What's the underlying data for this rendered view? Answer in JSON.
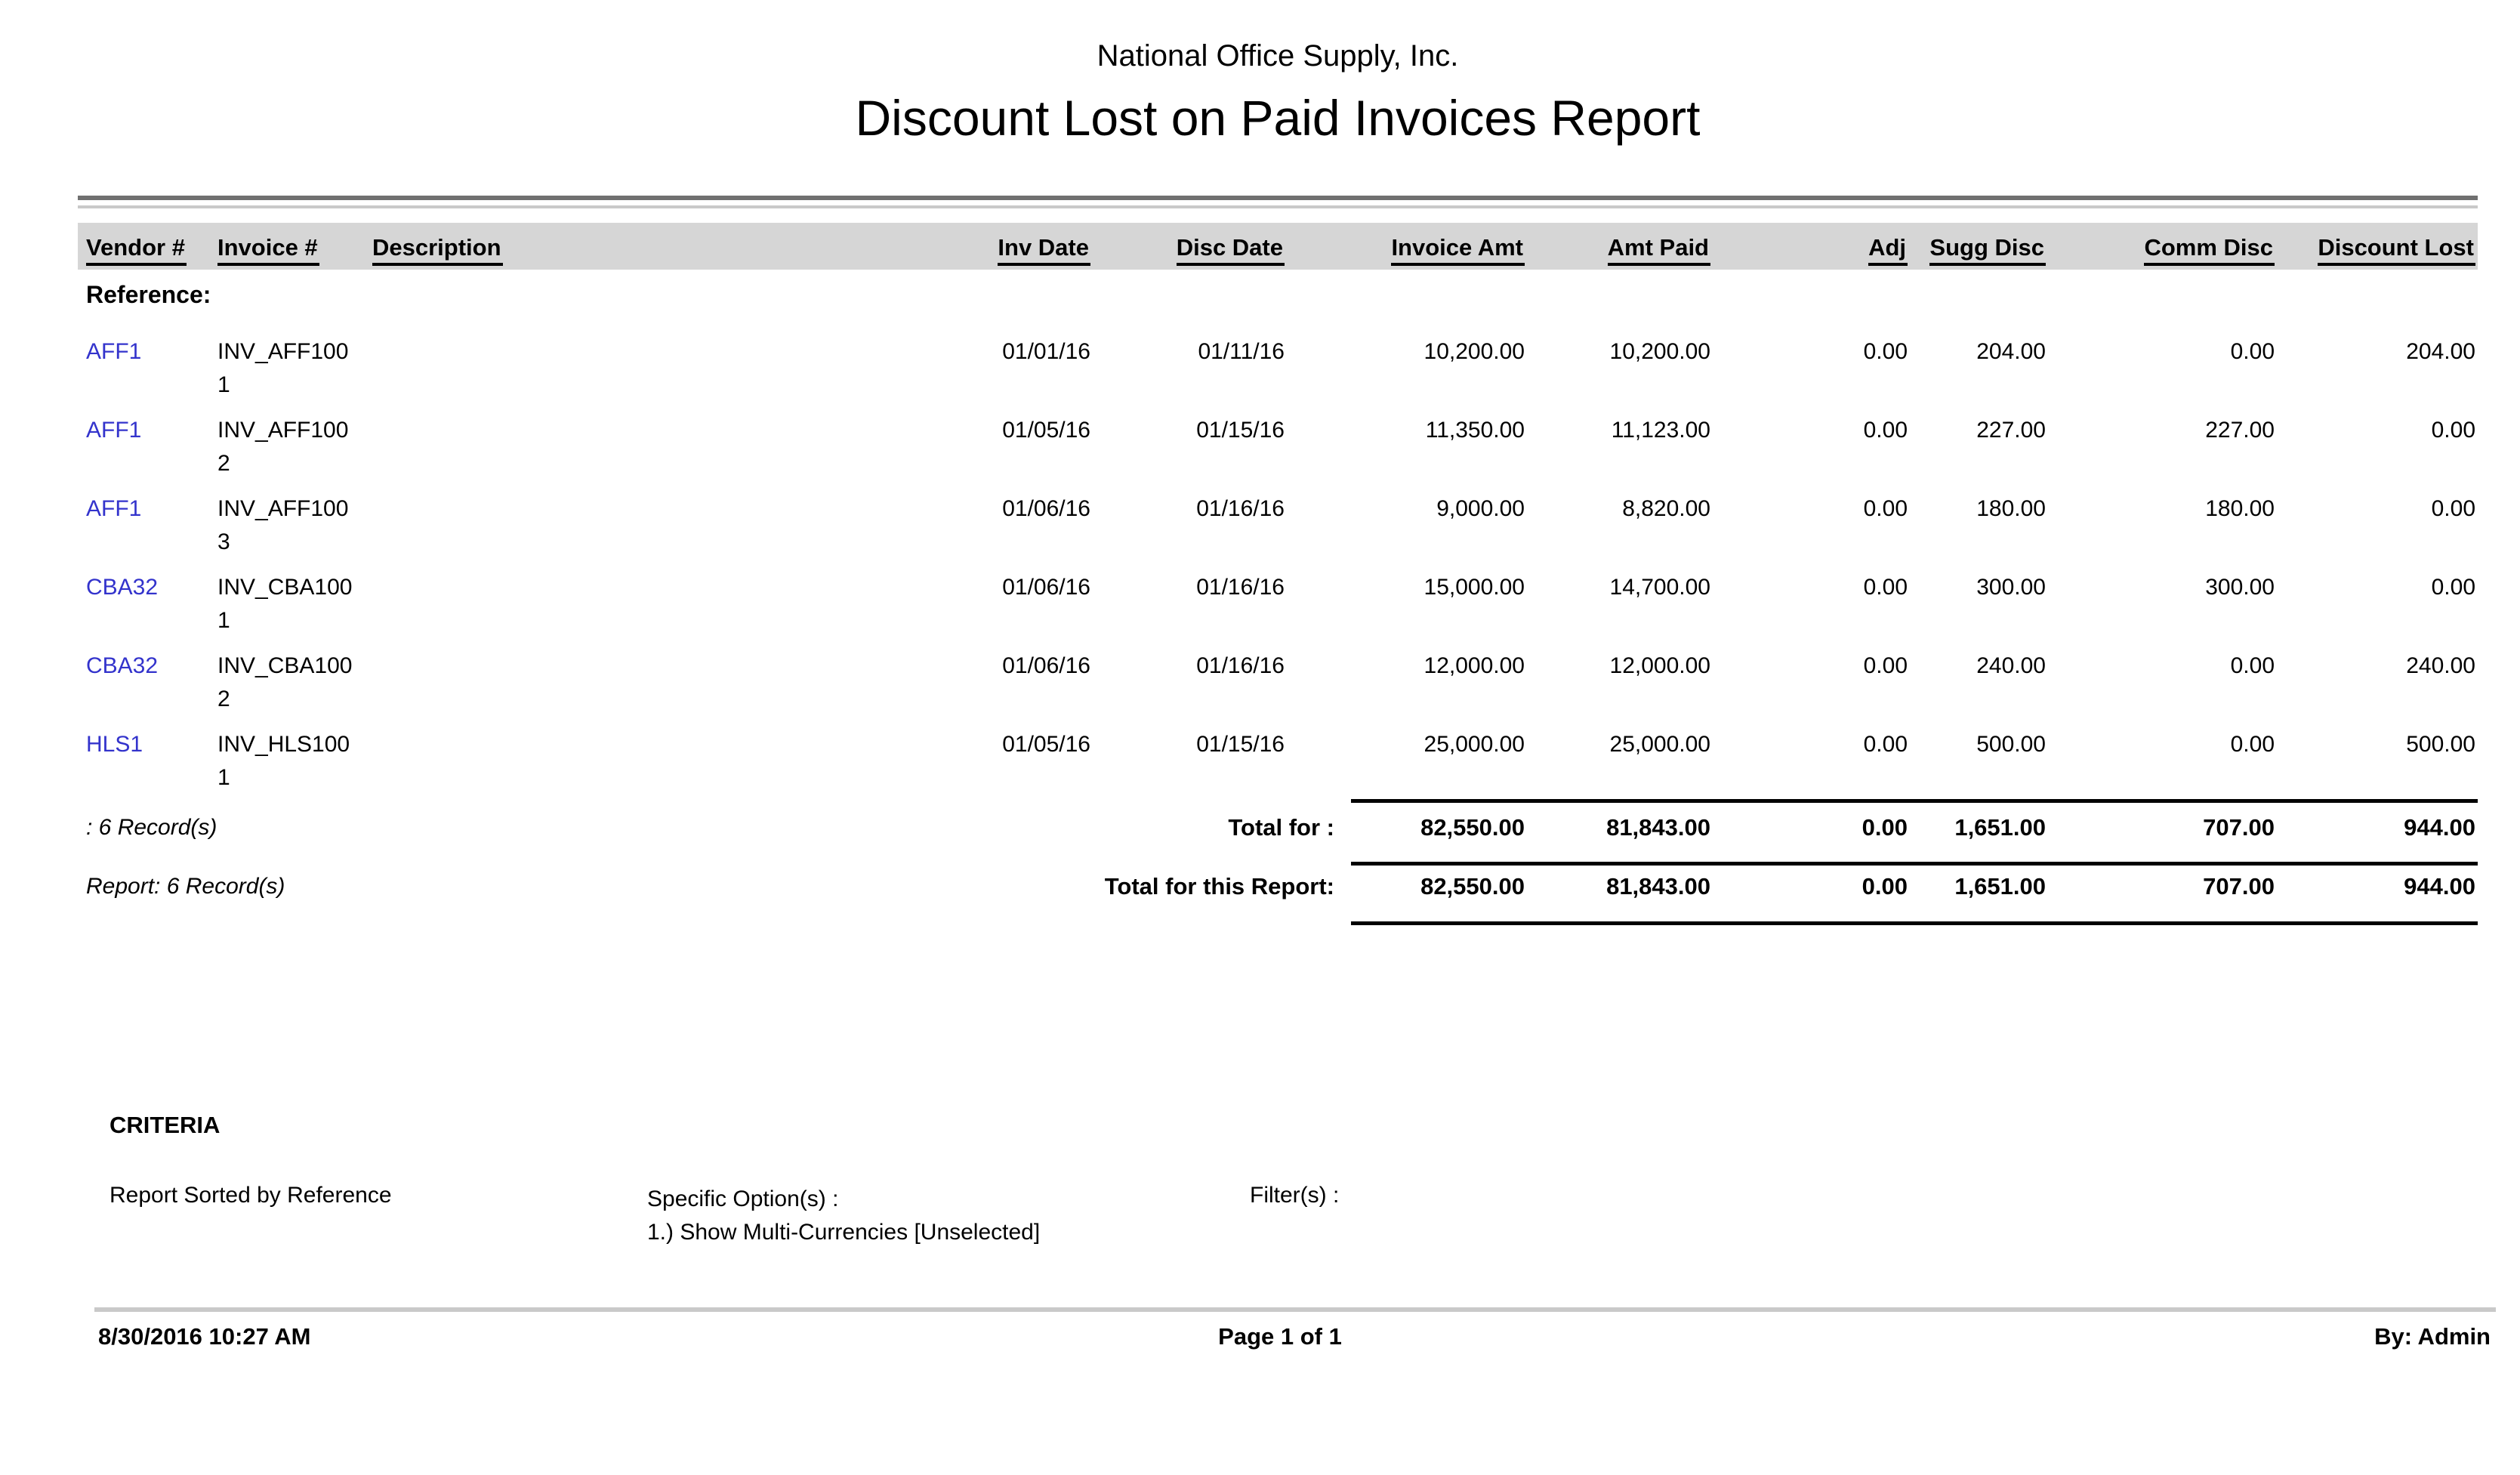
{
  "report": {
    "company": "National Office Supply, Inc.",
    "title": "Discount Lost on Paid Invoices Report",
    "group_label": "Reference:",
    "columns": [
      "Vendor #",
      "Invoice #",
      "Description",
      "Inv Date",
      "Disc Date",
      "Invoice Amt",
      "Amt Paid",
      "Adj",
      "Sugg Disc",
      "Comm Disc",
      "Discount Lost"
    ],
    "rows": [
      {
        "vendor": "AFF1",
        "invoice": "INV_AFF1001",
        "description": "",
        "inv_date": "01/01/16",
        "disc_date": "01/11/16",
        "invoice_amt": "10,200.00",
        "amt_paid": "10,200.00",
        "adj": "0.00",
        "sugg_disc": "204.00",
        "comm_disc": "0.00",
        "discount_lost": "204.00"
      },
      {
        "vendor": "AFF1",
        "invoice": "INV_AFF1002",
        "description": "",
        "inv_date": "01/05/16",
        "disc_date": "01/15/16",
        "invoice_amt": "11,350.00",
        "amt_paid": "11,123.00",
        "adj": "0.00",
        "sugg_disc": "227.00",
        "comm_disc": "227.00",
        "discount_lost": "0.00"
      },
      {
        "vendor": "AFF1",
        "invoice": "INV_AFF1003",
        "description": "",
        "inv_date": "01/06/16",
        "disc_date": "01/16/16",
        "invoice_amt": "9,000.00",
        "amt_paid": "8,820.00",
        "adj": "0.00",
        "sugg_disc": "180.00",
        "comm_disc": "180.00",
        "discount_lost": "0.00"
      },
      {
        "vendor": "CBA32",
        "invoice": "INV_CBA1001",
        "description": "",
        "inv_date": "01/06/16",
        "disc_date": "01/16/16",
        "invoice_amt": "15,000.00",
        "amt_paid": "14,700.00",
        "adj": "0.00",
        "sugg_disc": "300.00",
        "comm_disc": "300.00",
        "discount_lost": "0.00"
      },
      {
        "vendor": "CBA32",
        "invoice": "INV_CBA1002",
        "description": "",
        "inv_date": "01/06/16",
        "disc_date": "01/16/16",
        "invoice_amt": "12,000.00",
        "amt_paid": "12,000.00",
        "adj": "0.00",
        "sugg_disc": "240.00",
        "comm_disc": "0.00",
        "discount_lost": "240.00"
      },
      {
        "vendor": "HLS1",
        "invoice": "INV_HLS1001",
        "description": "",
        "inv_date": "01/05/16",
        "disc_date": "01/15/16",
        "invoice_amt": "25,000.00",
        "amt_paid": "25,000.00",
        "adj": "0.00",
        "sugg_disc": "500.00",
        "comm_disc": "0.00",
        "discount_lost": "500.00"
      }
    ],
    "group_total": {
      "records": ": 6 Record(s)",
      "label": "Total for :",
      "invoice_amt": "82,550.00",
      "amt_paid": "81,843.00",
      "adj": "0.00",
      "sugg_disc": "1,651.00",
      "comm_disc": "707.00",
      "discount_lost": "944.00"
    },
    "report_total": {
      "records": "Report: 6 Record(s)",
      "label": "Total for this Report:",
      "invoice_amt": "82,550.00",
      "amt_paid": "81,843.00",
      "adj": "0.00",
      "sugg_disc": "1,651.00",
      "comm_disc": "707.00",
      "discount_lost": "944.00"
    },
    "criteria": {
      "heading": "CRITERIA",
      "sorted_by": "Report Sorted by Reference",
      "specific_options_label": "Specific Option(s) :",
      "specific_options": [
        "1.) Show Multi-Currencies [Unselected]"
      ],
      "filters_label": "Filter(s) :"
    },
    "footer": {
      "datetime": "8/30/2016 10:27 AM",
      "page": "Page 1 of 1",
      "by": "By: Admin"
    },
    "colors": {
      "link": "#3333cc",
      "header_bar": "#d6d6d6",
      "rule_dark": "#707070",
      "rule_light": "#c9c9c9"
    }
  }
}
